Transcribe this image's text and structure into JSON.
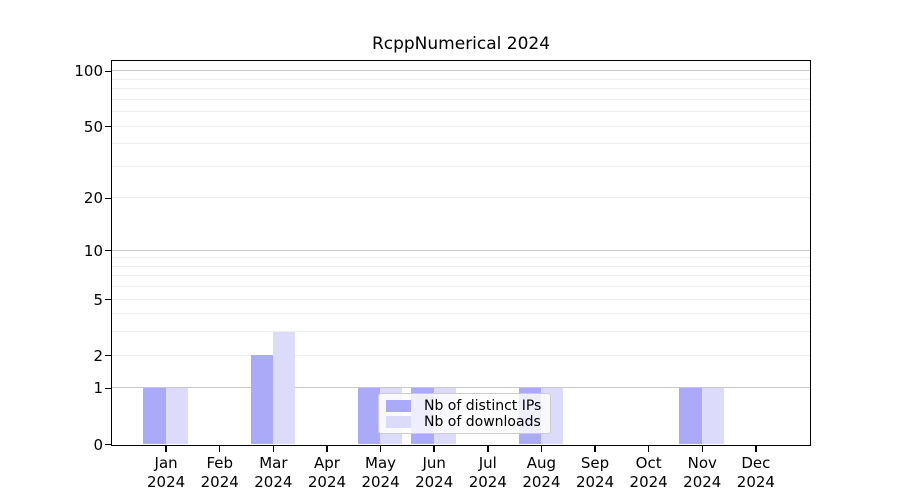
{
  "chart_data": {
    "type": "bar",
    "title": "RcppNumerical 2024",
    "year": "2024",
    "categories": [
      "Jan",
      "Feb",
      "Mar",
      "Apr",
      "May",
      "Jun",
      "Jul",
      "Aug",
      "Sep",
      "Oct",
      "Nov",
      "Dec"
    ],
    "series": [
      {
        "name": "Nb of distinct IPs",
        "color": "#aaaaf8",
        "values": [
          1,
          0,
          2,
          0,
          1,
          1,
          0,
          1,
          0,
          0,
          1,
          0
        ]
      },
      {
        "name": "Nb of downloads",
        "color": "#dcdcfa",
        "values": [
          1,
          0,
          3,
          0,
          1,
          1,
          0,
          1,
          0,
          0,
          1,
          0
        ]
      }
    ],
    "yticks": [
      0,
      1,
      2,
      5,
      10,
      20,
      50,
      100
    ],
    "ylim": [
      0,
      113
    ],
    "y_scale": "log10(1+y)",
    "grid": "on",
    "gridlines": {
      "minor": [
        2,
        3,
        4,
        5,
        6,
        7,
        8,
        9,
        20,
        30,
        40,
        50,
        60,
        70,
        80,
        90
      ],
      "major": [
        1,
        10,
        100
      ]
    },
    "legend": {
      "position": "inside-bottom-center",
      "entries": [
        "Nb of distinct IPs",
        "Nb of downloads"
      ]
    },
    "colors": {
      "axis": "#000000",
      "text": "#000000",
      "grid_minor": "#ededed",
      "grid_major": "#c9c9c9",
      "legend_border": "#cccccc",
      "legend_bg": "rgba(255,255,255,0.8)"
    }
  }
}
